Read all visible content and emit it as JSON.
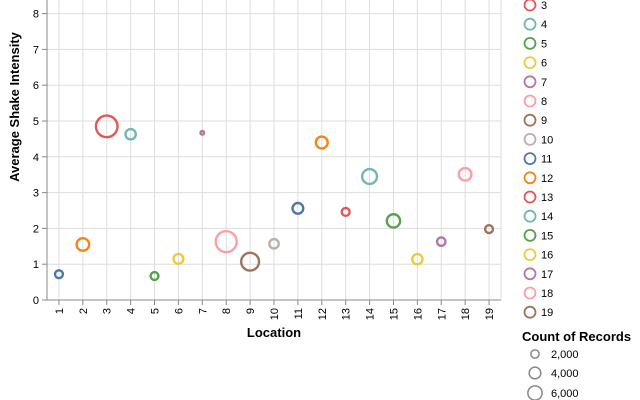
{
  "chart_data": {
    "type": "scatter",
    "xlabel": "Location",
    "ylabel": "Average Shake Intensity",
    "categories": [
      "1",
      "2",
      "3",
      "4",
      "5",
      "6",
      "7",
      "8",
      "9",
      "10",
      "11",
      "12",
      "13",
      "14",
      "15",
      "16",
      "17",
      "18",
      "19"
    ],
    "y_ticks": [
      0,
      1,
      2,
      3,
      4,
      5,
      6,
      7,
      8
    ],
    "ylim": [
      0,
      8.4
    ],
    "grid": true,
    "points": [
      {
        "location": "1",
        "intensity": 0.72,
        "count": 700,
        "color": "#4c78a8"
      },
      {
        "location": "2",
        "intensity": 1.55,
        "count": 1800,
        "color": "#f58518"
      },
      {
        "location": "3",
        "intensity": 4.85,
        "count": 5300,
        "color": "#e45756"
      },
      {
        "location": "4",
        "intensity": 4.63,
        "count": 1200,
        "color": "#72b7b2"
      },
      {
        "location": "5",
        "intensity": 0.67,
        "count": 700,
        "color": "#54a24b"
      },
      {
        "location": "6",
        "intensity": 1.15,
        "count": 1100,
        "color": "#eeca3b"
      },
      {
        "location": "7",
        "intensity": 4.67,
        "count": 150,
        "color": "#b279a2"
      },
      {
        "location": "8",
        "intensity": 1.63,
        "count": 5000,
        "color": "#ff9da6"
      },
      {
        "location": "9",
        "intensity": 1.07,
        "count": 3600,
        "color": "#9d755d"
      },
      {
        "location": "10",
        "intensity": 1.57,
        "count": 1000,
        "color": "#bab0ac"
      },
      {
        "location": "11",
        "intensity": 2.56,
        "count": 1300,
        "color": "#4c78a8"
      },
      {
        "location": "12",
        "intensity": 4.4,
        "count": 1600,
        "color": "#f58518"
      },
      {
        "location": "13",
        "intensity": 2.46,
        "count": 700,
        "color": "#e45756"
      },
      {
        "location": "14",
        "intensity": 3.45,
        "count": 2500,
        "color": "#72b7b2"
      },
      {
        "location": "15",
        "intensity": 2.21,
        "count": 2000,
        "color": "#54a24b"
      },
      {
        "location": "16",
        "intensity": 1.14,
        "count": 1200,
        "color": "#eeca3b"
      },
      {
        "location": "17",
        "intensity": 1.63,
        "count": 800,
        "color": "#b279a2"
      },
      {
        "location": "18",
        "intensity": 3.51,
        "count": 1800,
        "color": "#ff9da6"
      },
      {
        "location": "19",
        "intensity": 1.98,
        "count": 700,
        "color": "#9d755d"
      }
    ],
    "color_legend": {
      "entries": [
        {
          "label": "3",
          "color": "#e45756"
        },
        {
          "label": "4",
          "color": "#72b7b2"
        },
        {
          "label": "5",
          "color": "#54a24b"
        },
        {
          "label": "6",
          "color": "#eeca3b"
        },
        {
          "label": "7",
          "color": "#b279a2"
        },
        {
          "label": "8",
          "color": "#ff9da6"
        },
        {
          "label": "9",
          "color": "#9d755d"
        },
        {
          "label": "10",
          "color": "#bab0ac"
        },
        {
          "label": "11",
          "color": "#4c78a8"
        },
        {
          "label": "12",
          "color": "#f58518"
        },
        {
          "label": "13",
          "color": "#e45756"
        },
        {
          "label": "14",
          "color": "#72b7b2"
        },
        {
          "label": "15",
          "color": "#54a24b"
        },
        {
          "label": "16",
          "color": "#eeca3b"
        },
        {
          "label": "17",
          "color": "#b279a2"
        },
        {
          "label": "18",
          "color": "#ff9da6"
        },
        {
          "label": "19",
          "color": "#9d755d"
        }
      ]
    },
    "size_legend": {
      "title": "Count of Records",
      "entries": [
        {
          "label": "2,000",
          "count": 2000
        },
        {
          "label": "4,000",
          "count": 4000
        },
        {
          "label": "6,000",
          "count": 6000
        }
      ]
    },
    "size_scale_max_count": 6000
  }
}
